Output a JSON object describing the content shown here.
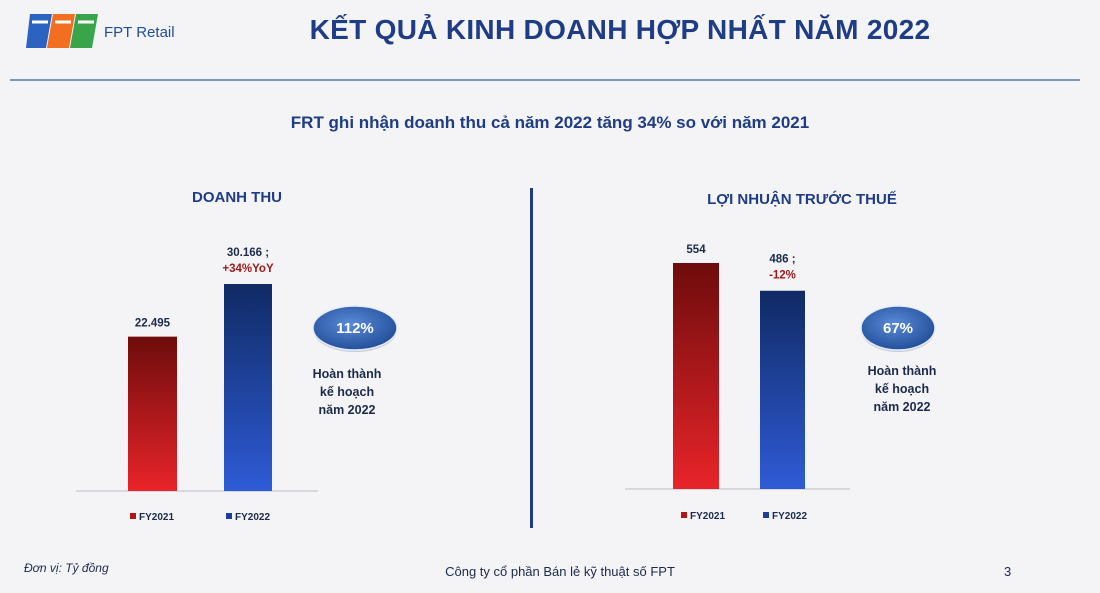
{
  "header": {
    "logo_text": "FPT Retail",
    "title": "KẾT QUẢ KINH DOANH HỢP NHẤT NĂM 2022"
  },
  "subtitle": "FRT ghi nhận doanh thu cả năm 2022 tăng 34% so với năm 2021",
  "colors": {
    "title": "#1f3c86",
    "fy2021": "#b51414",
    "fy2022": "#1d3f9a",
    "badge": "#2d5fb0",
    "change": "#a11a1a"
  },
  "chart_data": [
    {
      "type": "bar",
      "title": "DOANH THU",
      "categories": [
        "FY2021",
        "FY2022"
      ],
      "values": [
        22495,
        30166
      ],
      "value_labels": [
        "22.495",
        "30.166 ;"
      ],
      "change_labels": [
        "",
        "+34%YoY"
      ],
      "legend": [
        "FY2021",
        "FY2022"
      ],
      "legend_position": "bottom",
      "grid": false,
      "ylim": [
        0,
        30166
      ],
      "completion": {
        "badge": "112%",
        "caption": [
          "Hoàn thành",
          "kế hoạch",
          "năm 2022"
        ]
      }
    },
    {
      "type": "bar",
      "title": "LỢI NHUẬN TRƯỚC THUẾ",
      "categories": [
        "FY2021",
        "FY2022"
      ],
      "values": [
        554,
        486
      ],
      "value_labels": [
        "554",
        "486 ;"
      ],
      "change_labels": [
        "",
        "-12%"
      ],
      "legend": [
        "FY2021",
        "FY2022"
      ],
      "legend_position": "bottom",
      "grid": false,
      "ylim": [
        0,
        554
      ],
      "completion": {
        "badge": "67%",
        "caption": [
          "Hoàn thành",
          "kế hoạch",
          "năm 2022"
        ]
      }
    }
  ],
  "footer": {
    "unit": "Đơn vị: Tỷ đồng",
    "company": "Công ty cổ phần Bán lẻ kỹ thuật số FPT",
    "page_number": "3"
  }
}
